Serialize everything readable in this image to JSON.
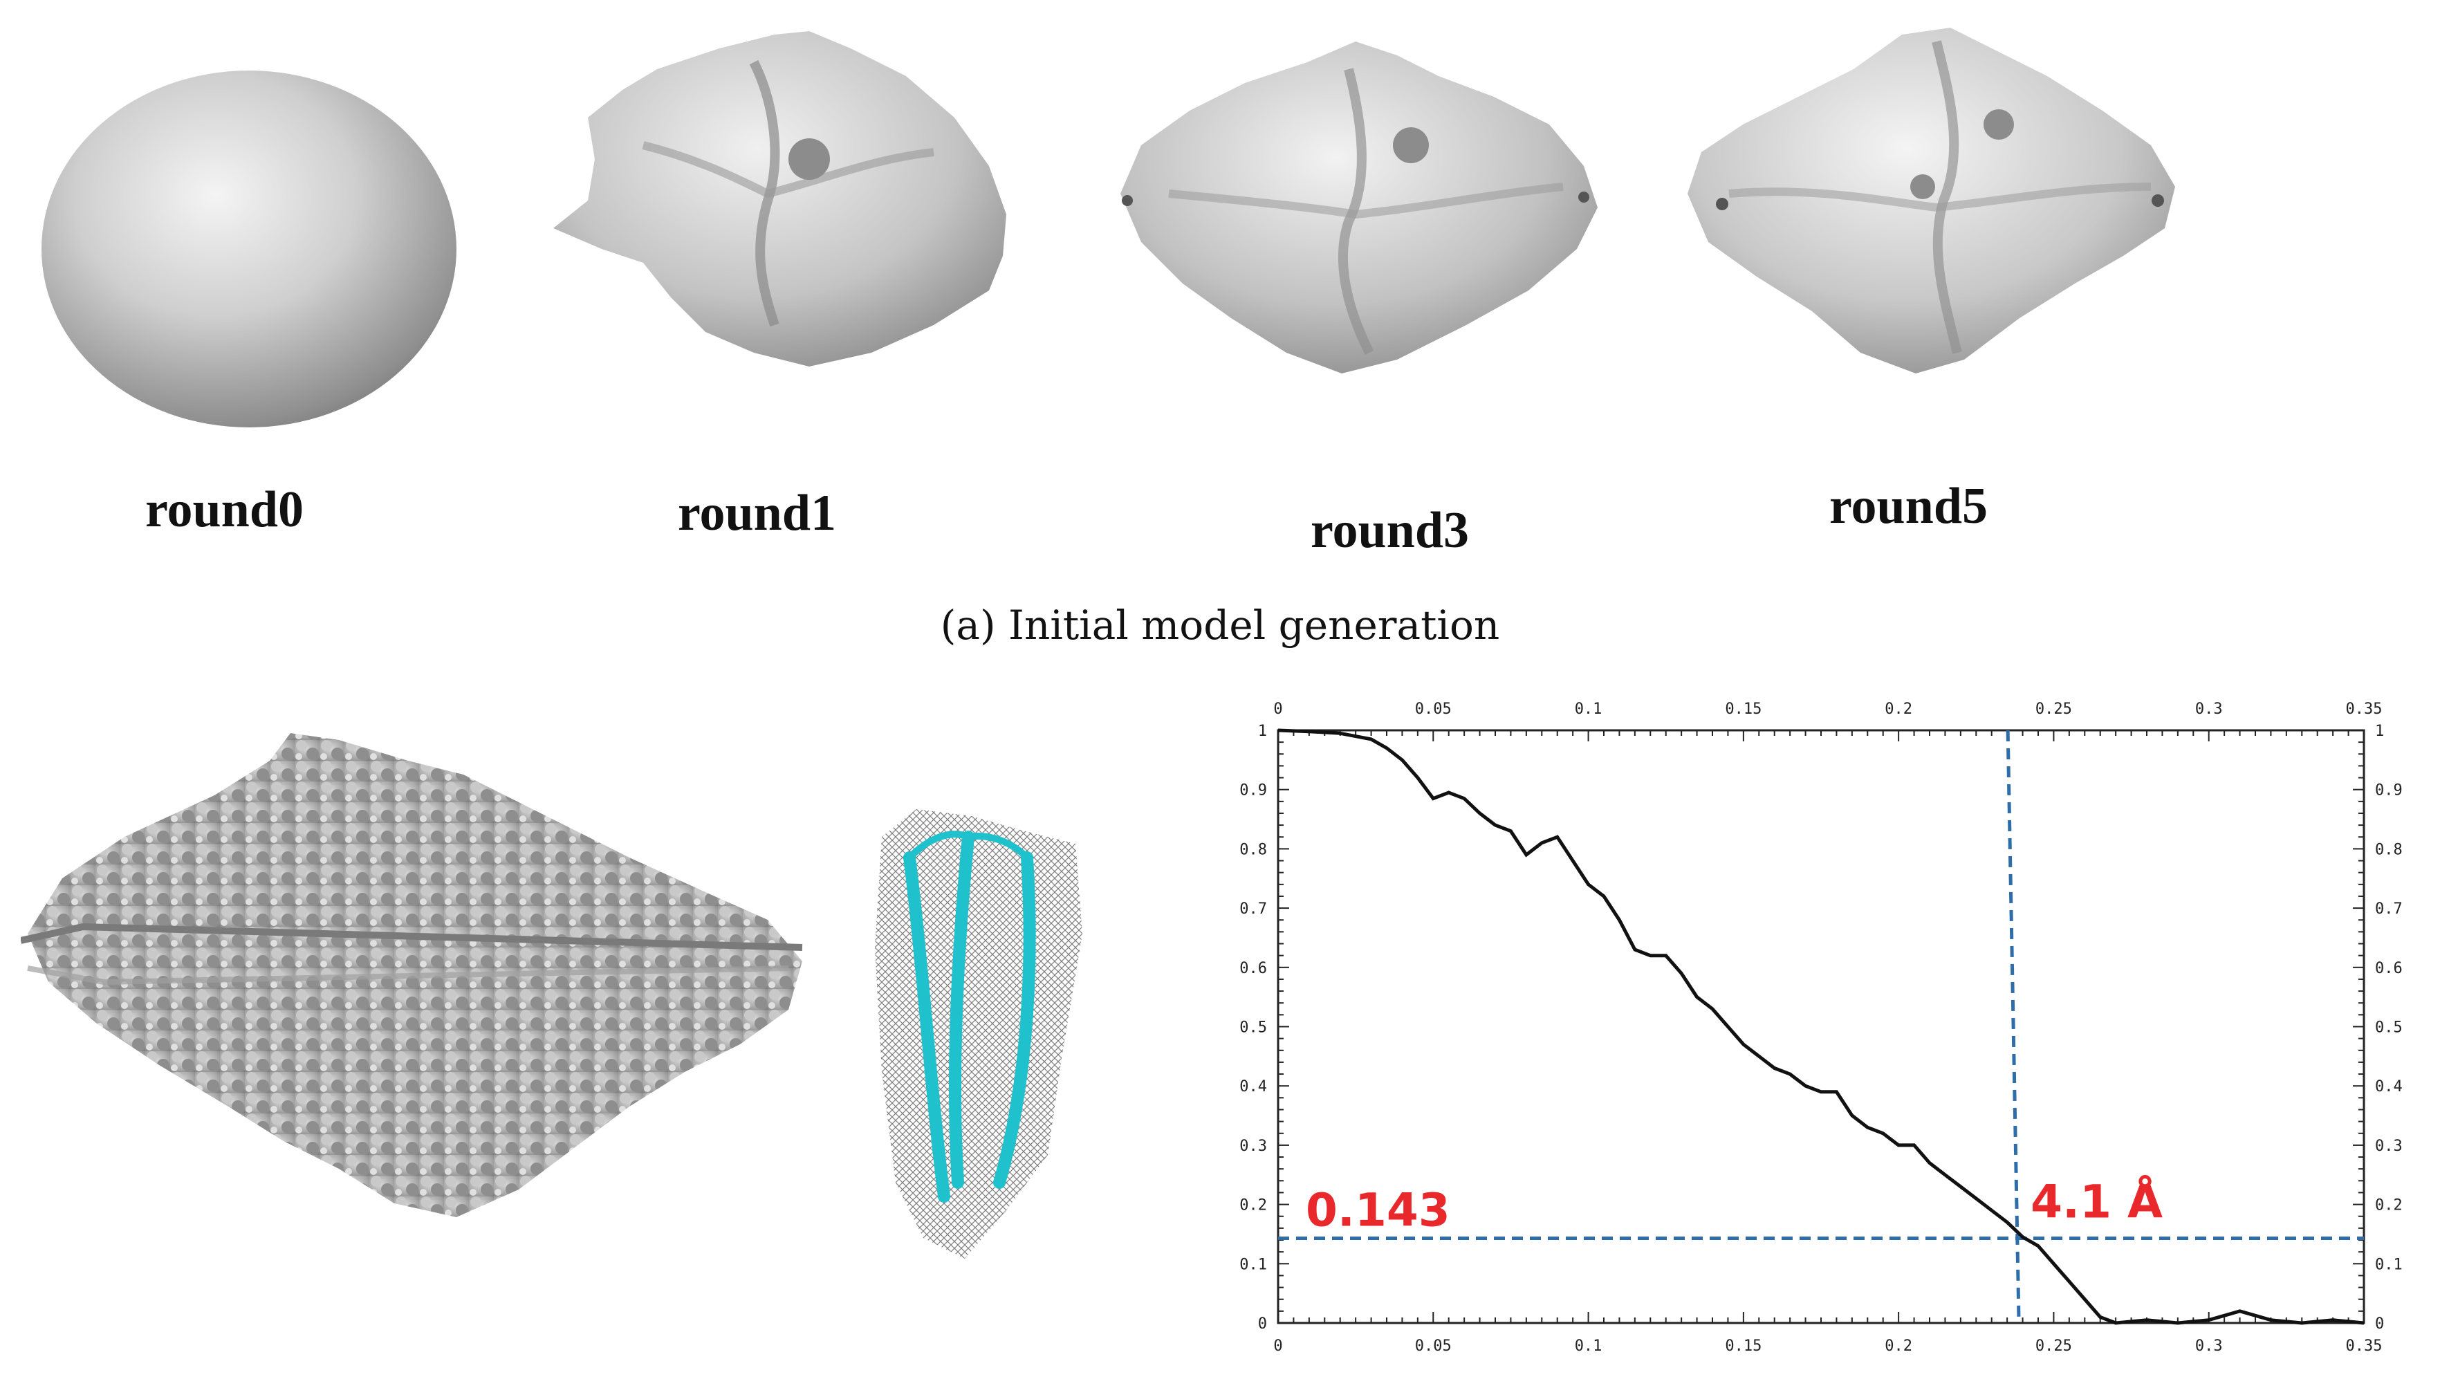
{
  "rounds": [
    {
      "label": "round0"
    },
    {
      "label": "round1"
    },
    {
      "label": "round3"
    },
    {
      "label": "round5"
    }
  ],
  "caption": "(a) Initial model generation",
  "chart_data": {
    "type": "line",
    "x_ticks": [
      "0",
      "0.05",
      "0.1",
      "0.15",
      "0.2",
      "0.25",
      "0.3",
      "0.35"
    ],
    "y_ticks": [
      "0",
      "0.1",
      "0.2",
      "0.3",
      "0.4",
      "0.5",
      "0.6",
      "0.7",
      "0.8",
      "0.9",
      "1"
    ],
    "xlim": [
      0,
      0.35
    ],
    "ylim": [
      0,
      1
    ],
    "grid": false,
    "x": [
      0,
      0.01,
      0.02,
      0.03,
      0.035,
      0.04,
      0.045,
      0.05,
      0.055,
      0.06,
      0.065,
      0.07,
      0.075,
      0.08,
      0.085,
      0.09,
      0.095,
      0.1,
      0.105,
      0.11,
      0.115,
      0.12,
      0.125,
      0.13,
      0.135,
      0.14,
      0.145,
      0.15,
      0.155,
      0.16,
      0.165,
      0.17,
      0.175,
      0.18,
      0.185,
      0.19,
      0.195,
      0.2,
      0.205,
      0.21,
      0.215,
      0.22,
      0.225,
      0.23,
      0.235,
      0.24,
      0.245,
      0.25,
      0.255,
      0.26,
      0.265,
      0.27,
      0.28,
      0.29,
      0.3,
      0.31,
      0.32,
      0.33,
      0.34,
      0.35
    ],
    "y": [
      1.0,
      0.998,
      0.995,
      0.985,
      0.97,
      0.95,
      0.92,
      0.885,
      0.895,
      0.885,
      0.86,
      0.84,
      0.83,
      0.79,
      0.81,
      0.82,
      0.78,
      0.74,
      0.72,
      0.68,
      0.63,
      0.62,
      0.62,
      0.59,
      0.55,
      0.53,
      0.5,
      0.47,
      0.45,
      0.43,
      0.42,
      0.4,
      0.39,
      0.39,
      0.35,
      0.33,
      0.32,
      0.3,
      0.3,
      0.27,
      0.25,
      0.23,
      0.21,
      0.19,
      0.17,
      0.145,
      0.13,
      0.1,
      0.07,
      0.04,
      0.01,
      0.0,
      0.005,
      0.0,
      0.005,
      0.02,
      0.005,
      0.0,
      0.005,
      0.0
    ],
    "threshold_y": 0.143,
    "threshold_x": 0.237,
    "annotations": [
      "0.143",
      "4.1 Å"
    ]
  }
}
